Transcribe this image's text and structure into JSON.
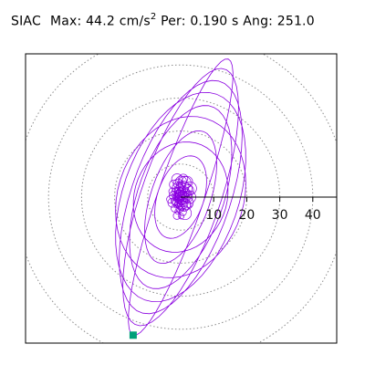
{
  "header": {
    "station": "SIAC",
    "max_label": "Max:",
    "max_value": "44.2",
    "max_unit_base": "cm/s",
    "max_unit_exp": "2",
    "per_label": "Per:",
    "per_value": "0.190 s",
    "ang_label": "Ang:",
    "ang_value": "251.0"
  },
  "colors": {
    "trace": "#8a00e0",
    "grid": "#8c8c8c",
    "axis": "#000000",
    "frame": "#000000",
    "marker": "#00a07a"
  },
  "chart_data": {
    "type": "polar-particle-motion",
    "radial_ticks": [
      10,
      20,
      30,
      40
    ],
    "rings": [
      10,
      20,
      30,
      40,
      50
    ],
    "max_amplitude": 44.2,
    "angle_deg": 251.0,
    "period_s": 0.19,
    "end_marker_amplitude": 44.2,
    "grid": true,
    "trace_loops": [
      {
        "amp": 44.2,
        "width": 7.0
      },
      {
        "amp": 41.0,
        "width": 12.0
      },
      {
        "amp": 37.0,
        "width": 15.0
      },
      {
        "amp": 33.0,
        "width": 17.5
      },
      {
        "amp": 29.0,
        "width": 13.0
      },
      {
        "amp": 25.0,
        "width": 19.0
      },
      {
        "amp": 21.0,
        "width": 9.0
      },
      {
        "amp": 17.0,
        "width": 14.0
      },
      {
        "amp": 13.0,
        "width": 7.0
      }
    ]
  }
}
